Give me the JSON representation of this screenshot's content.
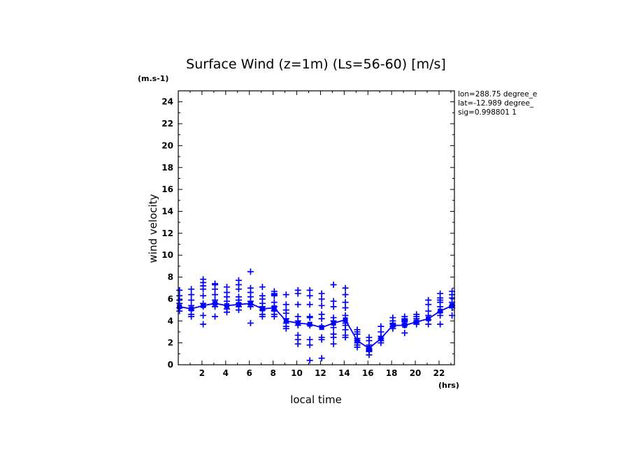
{
  "chart_data": {
    "type": "scatter",
    "title": "Surface Wind (z=1m) (Ls=56-60) [m/s]",
    "xlabel": "local time",
    "ylabel": "wind velocity",
    "x_unit": "(hrs)",
    "y_unit": "(m.s-1)",
    "xlim": [
      0,
      23.3
    ],
    "ylim": [
      0,
      25
    ],
    "x_ticks": [
      2,
      4,
      6,
      8,
      10,
      12,
      14,
      16,
      18,
      20,
      22
    ],
    "y_ticks": [
      0,
      2,
      4,
      6,
      8,
      10,
      12,
      14,
      16,
      18,
      20,
      22,
      24
    ],
    "info": [
      "lon=288.75 degree_e",
      "lat=-12.989 degree_",
      "sig=0.998801 1"
    ],
    "color": "#0000ff",
    "series": [
      {
        "type": "scatter",
        "points": [
          [
            0.1,
            6.8
          ],
          [
            0.1,
            6.3
          ],
          [
            0.1,
            5.9
          ],
          [
            0.1,
            5.6
          ],
          [
            0.1,
            5.2
          ],
          [
            0.1,
            4.9
          ],
          [
            1.1,
            6.9
          ],
          [
            1.1,
            6.4
          ],
          [
            1.1,
            5.9
          ],
          [
            1.1,
            5.4
          ],
          [
            1.1,
            5.0
          ],
          [
            1.1,
            4.6
          ],
          [
            1.1,
            4.4
          ],
          [
            2.1,
            7.8
          ],
          [
            2.1,
            7.5
          ],
          [
            2.1,
            7.2
          ],
          [
            2.1,
            6.9
          ],
          [
            2.1,
            6.3
          ],
          [
            2.1,
            5.6
          ],
          [
            2.1,
            5.3
          ],
          [
            2.1,
            4.5
          ],
          [
            2.1,
            3.7
          ],
          [
            3.1,
            7.4
          ],
          [
            3.1,
            7.3
          ],
          [
            3.1,
            6.9
          ],
          [
            3.1,
            6.4
          ],
          [
            3.1,
            5.9
          ],
          [
            3.1,
            5.6
          ],
          [
            3.1,
            5.3
          ],
          [
            3.1,
            4.4
          ],
          [
            4.1,
            7.1
          ],
          [
            4.1,
            6.6
          ],
          [
            4.1,
            6.2
          ],
          [
            4.1,
            5.8
          ],
          [
            4.1,
            5.4
          ],
          [
            4.1,
            5.1
          ],
          [
            4.1,
            4.8
          ],
          [
            5.1,
            7.7
          ],
          [
            5.1,
            7.3
          ],
          [
            5.1,
            6.9
          ],
          [
            5.1,
            6.2
          ],
          [
            5.1,
            5.9
          ],
          [
            5.1,
            5.6
          ],
          [
            5.1,
            5.3
          ],
          [
            5.1,
            5.0
          ],
          [
            6.1,
            8.5
          ],
          [
            6.1,
            7.0
          ],
          [
            6.1,
            6.6
          ],
          [
            6.1,
            6.2
          ],
          [
            6.1,
            5.8
          ],
          [
            6.1,
            5.5
          ],
          [
            6.1,
            5.3
          ],
          [
            6.1,
            3.8
          ],
          [
            7.1,
            7.1
          ],
          [
            7.1,
            6.3
          ],
          [
            7.1,
            6.0
          ],
          [
            7.1,
            5.6
          ],
          [
            7.1,
            5.3
          ],
          [
            7.1,
            5.0
          ],
          [
            7.1,
            4.6
          ],
          [
            7.1,
            4.4
          ],
          [
            8.1,
            6.7
          ],
          [
            8.1,
            6.5
          ],
          [
            8.1,
            6.4
          ],
          [
            8.1,
            6.3
          ],
          [
            8.1,
            5.7
          ],
          [
            8.1,
            5.3
          ],
          [
            8.1,
            5.0
          ],
          [
            8.1,
            4.9
          ],
          [
            8.1,
            4.6
          ],
          [
            8.1,
            4.4
          ],
          [
            9.1,
            6.4
          ],
          [
            9.1,
            5.5
          ],
          [
            9.1,
            5.0
          ],
          [
            9.1,
            4.7
          ],
          [
            9.1,
            4.2
          ],
          [
            9.1,
            3.8
          ],
          [
            9.1,
            3.5
          ],
          [
            9.1,
            3.3
          ],
          [
            10.1,
            6.8
          ],
          [
            10.1,
            6.5
          ],
          [
            10.1,
            5.5
          ],
          [
            10.1,
            4.4
          ],
          [
            10.1,
            4.0
          ],
          [
            10.1,
            3.6
          ],
          [
            10.1,
            2.7
          ],
          [
            10.1,
            2.3
          ],
          [
            10.1,
            1.9
          ],
          [
            11.1,
            6.8
          ],
          [
            11.1,
            6.3
          ],
          [
            11.1,
            5.5
          ],
          [
            11.1,
            4.4
          ],
          [
            11.1,
            4.3
          ],
          [
            11.1,
            3.6
          ],
          [
            11.1,
            2.3
          ],
          [
            11.1,
            1.8
          ],
          [
            11.1,
            0.4
          ],
          [
            12.1,
            6.5
          ],
          [
            12.1,
            6.0
          ],
          [
            12.1,
            5.4
          ],
          [
            12.1,
            4.6
          ],
          [
            12.1,
            4.2
          ],
          [
            12.1,
            3.5
          ],
          [
            12.1,
            2.5
          ],
          [
            12.1,
            2.3
          ],
          [
            12.1,
            0.6
          ],
          [
            13.1,
            7.3
          ],
          [
            13.1,
            5.8
          ],
          [
            13.1,
            5.3
          ],
          [
            13.1,
            4.3
          ],
          [
            13.1,
            4.0
          ],
          [
            13.1,
            3.4
          ],
          [
            13.1,
            2.8
          ],
          [
            13.1,
            2.5
          ],
          [
            13.1,
            1.9
          ],
          [
            14.1,
            7.0
          ],
          [
            14.1,
            6.4
          ],
          [
            14.1,
            5.7
          ],
          [
            14.1,
            5.2
          ],
          [
            14.1,
            4.5
          ],
          [
            14.1,
            3.8
          ],
          [
            14.1,
            3.6
          ],
          [
            14.1,
            3.2
          ],
          [
            14.1,
            2.7
          ],
          [
            14.1,
            2.5
          ],
          [
            15.1,
            3.2
          ],
          [
            15.1,
            3.0
          ],
          [
            15.1,
            2.8
          ],
          [
            15.1,
            2.4
          ],
          [
            15.1,
            2.2
          ],
          [
            15.1,
            2.0
          ],
          [
            15.1,
            1.8
          ],
          [
            15.1,
            1.6
          ],
          [
            16.1,
            2.5
          ],
          [
            16.1,
            2.2
          ],
          [
            16.1,
            1.8
          ],
          [
            16.1,
            1.5
          ],
          [
            16.1,
            1.4
          ],
          [
            16.1,
            1.3
          ],
          [
            16.1,
            1.2
          ],
          [
            16.1,
            0.9
          ],
          [
            17.1,
            3.5
          ],
          [
            17.1,
            3.0
          ],
          [
            17.1,
            2.6
          ],
          [
            17.1,
            2.4
          ],
          [
            17.1,
            2.2
          ],
          [
            17.1,
            2.0
          ],
          [
            18.1,
            4.3
          ],
          [
            18.1,
            4.0
          ],
          [
            18.1,
            3.8
          ],
          [
            18.1,
            3.7
          ],
          [
            18.1,
            3.5
          ],
          [
            18.1,
            3.3
          ],
          [
            19.1,
            4.4
          ],
          [
            19.1,
            4.2
          ],
          [
            19.1,
            4.1
          ],
          [
            19.1,
            4.0
          ],
          [
            19.1,
            3.9
          ],
          [
            19.1,
            3.7
          ],
          [
            19.1,
            3.6
          ],
          [
            19.1,
            2.9
          ],
          [
            20.1,
            4.6
          ],
          [
            20.1,
            4.4
          ],
          [
            20.1,
            4.2
          ],
          [
            20.1,
            4.0
          ],
          [
            20.1,
            3.9
          ],
          [
            20.1,
            3.7
          ],
          [
            21.1,
            5.9
          ],
          [
            21.1,
            5.5
          ],
          [
            21.1,
            4.9
          ],
          [
            21.1,
            4.5
          ],
          [
            21.1,
            4.1
          ],
          [
            21.1,
            3.7
          ],
          [
            22.1,
            6.5
          ],
          [
            22.1,
            6.1
          ],
          [
            22.1,
            5.9
          ],
          [
            22.1,
            5.7
          ],
          [
            22.1,
            5.3
          ],
          [
            22.1,
            4.8
          ],
          [
            22.1,
            4.5
          ],
          [
            22.1,
            3.7
          ],
          [
            23.1,
            6.7
          ],
          [
            23.1,
            6.4
          ],
          [
            23.1,
            6.1
          ],
          [
            23.1,
            5.7
          ],
          [
            23.1,
            5.4
          ],
          [
            23.1,
            5.2
          ],
          [
            23.1,
            4.5
          ]
        ]
      },
      {
        "type": "line",
        "x": [
          0.1,
          1.1,
          2.1,
          3.1,
          4.1,
          5.1,
          6.1,
          7.1,
          8.1,
          9.1,
          10.1,
          11.1,
          12.1,
          13.1,
          14.1,
          15.1,
          16.1,
          17.1,
          18.1,
          19.1,
          20.1,
          21.1,
          22.1,
          23.1
        ],
        "values": [
          5.3,
          5.1,
          5.4,
          5.6,
          5.4,
          5.5,
          5.6,
          5.1,
          5.2,
          4.0,
          3.8,
          3.7,
          3.4,
          3.8,
          4.1,
          2.2,
          1.5,
          2.4,
          3.6,
          3.6,
          3.9,
          4.2,
          4.9,
          5.4
        ]
      }
    ]
  }
}
